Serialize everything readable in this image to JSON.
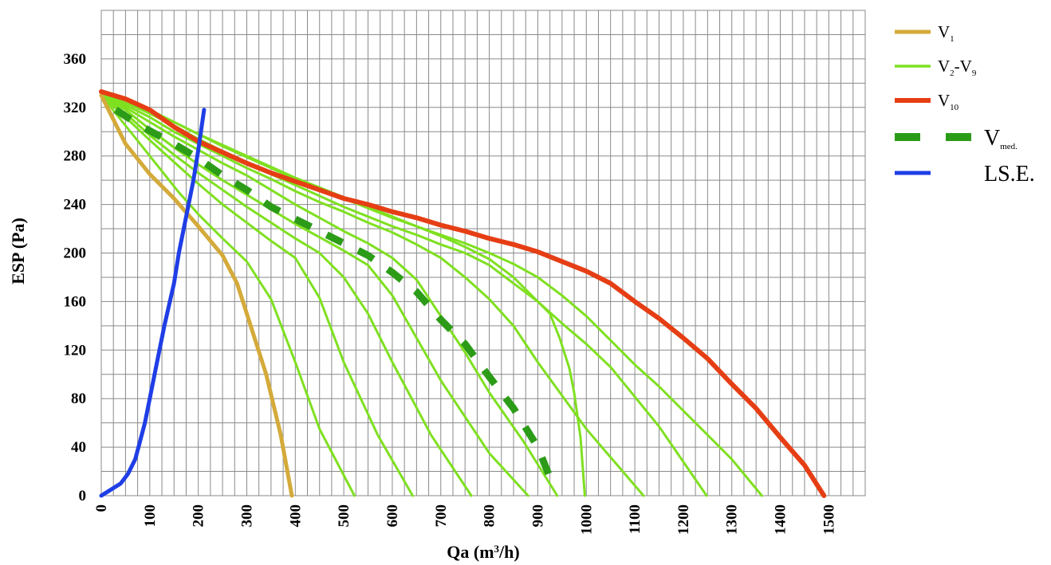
{
  "chart_data": {
    "type": "line",
    "xlabel": "Qa (m³/h)",
    "ylabel": "ESP (Pa)",
    "xlim": [
      0,
      1575
    ],
    "ylim": [
      0,
      400
    ],
    "x_ticks": [
      0,
      100,
      200,
      300,
      400,
      500,
      600,
      700,
      800,
      900,
      1000,
      1100,
      1200,
      1300,
      1400,
      1500
    ],
    "y_ticks": [
      0,
      40,
      80,
      120,
      160,
      200,
      240,
      280,
      320,
      360
    ],
    "grid": true,
    "legend_position": "right",
    "colors": {
      "v1": "#d4aa3a",
      "v2_v9": "#7fe020",
      "v10": "#e63e14",
      "vmed": "#2c9c18",
      "lse": "#1f3ee6"
    },
    "legend": [
      {
        "key": "v1",
        "main": "V",
        "sub": "1"
      },
      {
        "key": "v2_v9",
        "main": "V",
        "sub": "2",
        "mid": "-V",
        "sub2": "9"
      },
      {
        "key": "v10",
        "main": "V",
        "sub": "10"
      },
      {
        "key": "vmed",
        "main": "V",
        "sub": "med."
      },
      {
        "key": "lse",
        "main": "LS.E."
      }
    ],
    "series": [
      {
        "key": "v1",
        "points": [
          [
            0,
            330
          ],
          [
            25,
            310
          ],
          [
            50,
            290
          ],
          [
            100,
            265
          ],
          [
            150,
            245
          ],
          [
            200,
            222
          ],
          [
            250,
            198
          ],
          [
            280,
            175
          ],
          [
            300,
            150
          ],
          [
            340,
            100
          ],
          [
            370,
            50
          ],
          [
            393,
            0
          ]
        ]
      },
      {
        "key": "v2_v9",
        "points": [
          [
            0,
            330
          ],
          [
            40,
            310
          ],
          [
            80,
            290
          ],
          [
            120,
            270
          ],
          [
            160,
            250
          ],
          [
            200,
            232
          ],
          [
            250,
            212
          ],
          [
            300,
            193
          ],
          [
            350,
            162
          ],
          [
            400,
            110
          ],
          [
            450,
            55
          ],
          [
            522,
            0
          ]
        ]
      },
      {
        "key": "v2_v9",
        "points": [
          [
            0,
            330
          ],
          [
            50,
            312
          ],
          [
            100,
            293
          ],
          [
            150,
            275
          ],
          [
            200,
            257
          ],
          [
            250,
            240
          ],
          [
            300,
            225
          ],
          [
            350,
            210
          ],
          [
            400,
            196
          ],
          [
            450,
            163
          ],
          [
            500,
            110
          ],
          [
            570,
            50
          ],
          [
            642,
            0
          ]
        ]
      },
      {
        "key": "v2_v9",
        "points": [
          [
            0,
            330
          ],
          [
            50,
            315
          ],
          [
            100,
            297
          ],
          [
            150,
            281
          ],
          [
            200,
            266
          ],
          [
            250,
            252
          ],
          [
            300,
            238
          ],
          [
            350,
            225
          ],
          [
            400,
            212
          ],
          [
            450,
            200
          ],
          [
            500,
            180
          ],
          [
            550,
            150
          ],
          [
            600,
            110
          ],
          [
            680,
            50
          ],
          [
            763,
            0
          ]
        ]
      },
      {
        "key": "v2_v9",
        "points": [
          [
            0,
            330
          ],
          [
            50,
            318
          ],
          [
            100,
            302
          ],
          [
            150,
            287
          ],
          [
            200,
            273
          ],
          [
            250,
            260
          ],
          [
            300,
            248
          ],
          [
            350,
            236
          ],
          [
            400,
            224
          ],
          [
            450,
            213
          ],
          [
            500,
            202
          ],
          [
            550,
            190
          ],
          [
            600,
            165
          ],
          [
            650,
            130
          ],
          [
            700,
            95
          ],
          [
            800,
            35
          ],
          [
            880,
            0
          ]
        ]
      },
      {
        "key": "v2_v9",
        "points": [
          [
            0,
            330
          ],
          [
            50,
            320
          ],
          [
            100,
            308
          ],
          [
            150,
            296
          ],
          [
            200,
            285
          ],
          [
            250,
            274
          ],
          [
            300,
            264
          ],
          [
            350,
            252
          ],
          [
            400,
            240
          ],
          [
            450,
            229
          ],
          [
            500,
            218
          ],
          [
            550,
            208
          ],
          [
            600,
            196
          ],
          [
            650,
            178
          ],
          [
            700,
            148
          ],
          [
            750,
            118
          ],
          [
            800,
            85
          ],
          [
            870,
            45
          ],
          [
            940,
            0
          ]
        ]
      },
      {
        "key": "v2_v9",
        "points": [
          [
            0,
            330
          ],
          [
            50,
            322
          ],
          [
            100,
            312
          ],
          [
            150,
            300
          ],
          [
            200,
            290
          ],
          [
            250,
            280
          ],
          [
            300,
            270
          ],
          [
            350,
            261
          ],
          [
            400,
            251
          ],
          [
            450,
            242
          ],
          [
            500,
            234
          ],
          [
            550,
            225
          ],
          [
            600,
            217
          ],
          [
            650,
            207
          ],
          [
            700,
            196
          ],
          [
            750,
            180
          ],
          [
            800,
            162
          ],
          [
            850,
            140
          ],
          [
            900,
            110
          ],
          [
            1000,
            55
          ],
          [
            1118,
            0
          ]
        ]
      },
      {
        "key": "v2_v9",
        "points": [
          [
            0,
            330
          ],
          [
            50,
            324
          ],
          [
            100,
            315
          ],
          [
            150,
            305
          ],
          [
            200,
            294
          ],
          [
            250,
            284
          ],
          [
            300,
            274
          ],
          [
            350,
            265
          ],
          [
            400,
            256
          ],
          [
            450,
            247
          ],
          [
            500,
            238
          ],
          [
            550,
            230
          ],
          [
            600,
            222
          ],
          [
            650,
            215
          ],
          [
            700,
            207
          ],
          [
            750,
            200
          ],
          [
            800,
            190
          ],
          [
            850,
            175
          ],
          [
            900,
            160
          ],
          [
            950,
            142
          ],
          [
            1000,
            125
          ],
          [
            1050,
            106
          ],
          [
            1150,
            57
          ],
          [
            1248,
            0
          ]
        ]
      },
      {
        "key": "v2_v9",
        "points": [
          [
            0,
            330
          ],
          [
            50,
            325
          ],
          [
            100,
            317
          ],
          [
            150,
            308
          ],
          [
            200,
            298
          ],
          [
            250,
            288
          ],
          [
            300,
            279
          ],
          [
            350,
            270
          ],
          [
            400,
            261
          ],
          [
            450,
            253
          ],
          [
            500,
            245
          ],
          [
            550,
            237
          ],
          [
            600,
            229
          ],
          [
            650,
            222
          ],
          [
            700,
            215
          ],
          [
            750,
            208
          ],
          [
            800,
            200
          ],
          [
            850,
            191
          ],
          [
            900,
            180
          ],
          [
            950,
            165
          ],
          [
            1000,
            148
          ],
          [
            1050,
            128
          ],
          [
            1100,
            108
          ],
          [
            1150,
            90
          ],
          [
            1200,
            70
          ],
          [
            1300,
            30
          ],
          [
            1362,
            0
          ]
        ]
      },
      {
        "key": "v2_v9",
        "points": [
          [
            0,
            330
          ],
          [
            50,
            325
          ],
          [
            100,
            318
          ],
          [
            150,
            308
          ],
          [
            200,
            298
          ],
          [
            250,
            289
          ],
          [
            300,
            280
          ],
          [
            350,
            271
          ],
          [
            400,
            262
          ],
          [
            450,
            254
          ],
          [
            500,
            246
          ],
          [
            550,
            238
          ],
          [
            600,
            230
          ],
          [
            650,
            222
          ],
          [
            700,
            214
          ],
          [
            750,
            205
          ],
          [
            800,
            195
          ],
          [
            850,
            180
          ],
          [
            900,
            160
          ],
          [
            925,
            150
          ],
          [
            945,
            130
          ],
          [
            965,
            105
          ],
          [
            975,
            85
          ],
          [
            988,
            48
          ],
          [
            997,
            0
          ]
        ]
      },
      {
        "key": "v10",
        "points": [
          [
            0,
            333
          ],
          [
            50,
            327
          ],
          [
            100,
            318
          ],
          [
            150,
            304
          ],
          [
            200,
            292
          ],
          [
            250,
            283
          ],
          [
            300,
            274
          ],
          [
            350,
            266
          ],
          [
            400,
            259
          ],
          [
            450,
            252
          ],
          [
            500,
            245
          ],
          [
            550,
            240
          ],
          [
            600,
            234
          ],
          [
            650,
            229
          ],
          [
            700,
            223
          ],
          [
            750,
            218
          ],
          [
            800,
            212
          ],
          [
            850,
            207
          ],
          [
            900,
            201
          ],
          [
            950,
            193
          ],
          [
            1000,
            185
          ],
          [
            1050,
            175
          ],
          [
            1100,
            160
          ],
          [
            1150,
            146
          ],
          [
            1200,
            130
          ],
          [
            1250,
            113
          ],
          [
            1300,
            92
          ],
          [
            1350,
            72
          ],
          [
            1400,
            48
          ],
          [
            1450,
            25
          ],
          [
            1490,
            0
          ]
        ]
      },
      {
        "key": "vmed",
        "dashed": true,
        "points": [
          [
            30,
            318
          ],
          [
            80,
            305
          ],
          [
            150,
            290
          ],
          [
            200,
            278
          ],
          [
            250,
            264
          ],
          [
            300,
            252
          ],
          [
            350,
            238
          ],
          [
            400,
            228
          ],
          [
            450,
            218
          ],
          [
            500,
            208
          ],
          [
            550,
            198
          ],
          [
            600,
            184
          ],
          [
            650,
            168
          ],
          [
            700,
            145
          ],
          [
            750,
            125
          ],
          [
            800,
            98
          ],
          [
            850,
            72
          ],
          [
            900,
            40
          ],
          [
            935,
            5
          ]
        ]
      },
      {
        "key": "lse",
        "points": [
          [
            0,
            0
          ],
          [
            20,
            5
          ],
          [
            40,
            10
          ],
          [
            55,
            18
          ],
          [
            70,
            30
          ],
          [
            80,
            45
          ],
          [
            90,
            60
          ],
          [
            100,
            80
          ],
          [
            115,
            110
          ],
          [
            130,
            140
          ],
          [
            150,
            175
          ],
          [
            160,
            200
          ],
          [
            170,
            220
          ],
          [
            180,
            240
          ],
          [
            190,
            260
          ],
          [
            200,
            285
          ],
          [
            212,
            318
          ]
        ]
      }
    ]
  }
}
